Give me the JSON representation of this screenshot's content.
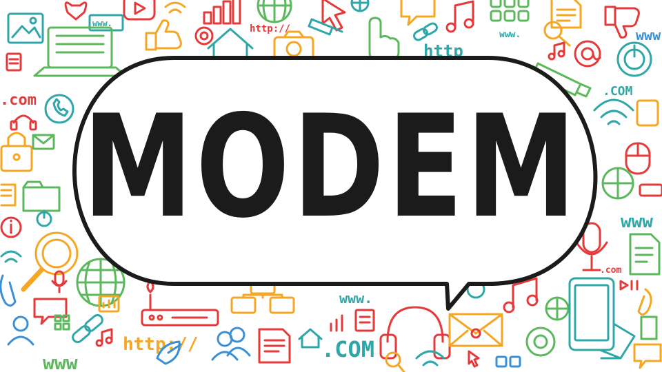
{
  "title": "MODEM",
  "colors": {
    "ink": "#1b1b1b",
    "red": "#e63a3a",
    "orange": "#f5a623",
    "green": "#5cb85c",
    "teal": "#2fa6a8",
    "blue": "#3a8fd6",
    "bubble_fill": "#ffffff"
  },
  "doodle_labels": {
    "www_top": "www.",
    "http_top": "http://",
    "com_left": ".com",
    "com_right": ".COM",
    "www_right": "www",
    "www_upper_right": "www",
    "com_low_right": ".com",
    "www_bottom_center": "www.",
    "http_bottom_left": "http://",
    "com_bottom_center": ".COM",
    "www_bottom_left": "www",
    "http_top_right": "http",
    "www_top_right_small": "www."
  },
  "icons": [
    "picture-frame-icon",
    "heart-bubble-icon",
    "browser-www-icon",
    "play-button-icon",
    "bar-chart-icon",
    "globe-icon",
    "cursor-arrow-icon",
    "music-note-icon",
    "grid-apps-icon",
    "document-icon",
    "thumbs-down-icon",
    "laptop-icon",
    "thumbs-up-icon",
    "at-sign-icon",
    "home-icon",
    "camera-icon",
    "pointing-hand-icon",
    "usb-icon",
    "power-icon",
    "padlock-icon",
    "wifi-icon",
    "magnifier-icon",
    "mouse-icon",
    "router-icon",
    "headphones-icon",
    "envelope-icon",
    "phone-icon",
    "microphone-icon",
    "users-icon",
    "chain-link-icon",
    "info-icon",
    "tablet-icon",
    "folder-icon",
    "speech-bubble-icon",
    "satellite-dish-icon",
    "paperclip-icon"
  ]
}
